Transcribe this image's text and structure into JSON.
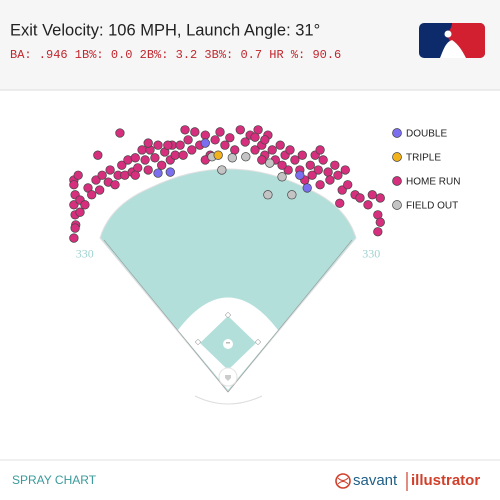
{
  "chart_data": {
    "type": "scatter",
    "title": "Exit Velocity: 106 MPH, Launch Angle: 31°",
    "subtitle": "BA: .946 1B%: 0.0 2B%: 3.2 3B%: 0.7 HR %: 90.6",
    "footer_label": "SPRAY CHART",
    "brand": [
      "savant",
      "illustrator"
    ],
    "distance_labels": [
      330,
      330
    ],
    "series": [
      {
        "name": "DOUBLE",
        "color": "#7b6ff0",
        "x": [
          -37,
          -114,
          -94,
          117,
          129
        ],
        "y": [
          445,
          388,
          390,
          384,
          360
        ]
      },
      {
        "name": "TRIPLE",
        "color": "#f2b21c",
        "x": [
          -16
        ],
        "y": [
          422
        ]
      },
      {
        "name": "HOME RUN",
        "color": "#d52f7d",
        "x": [
          -251,
          -249,
          -251,
          -249,
          -248,
          -251,
          -241,
          -241,
          -244,
          -228,
          -233,
          -222,
          -215,
          -209,
          -205,
          -195,
          -192,
          -184,
          -179,
          -173,
          -168,
          -163,
          -156,
          -151,
          -147,
          -140,
          -135,
          -130,
          -127,
          -119,
          -114,
          -108,
          -103,
          -94,
          -91,
          -86,
          -78,
          -73,
          -70,
          -65,
          -59,
          -54,
          -46,
          -37,
          -29,
          -21,
          -13,
          -5,
          3,
          11,
          20,
          28,
          36,
          44,
          49,
          55,
          60,
          65,
          72,
          77,
          85,
          93,
          98,
          101,
          109,
          117,
          121,
          125,
          134,
          142,
          147,
          150,
          155,
          163,
          166,
          174,
          179,
          186,
          191,
          195,
          182,
          207,
          215,
          228,
          235,
          244,
          248,
          244,
          248,
          -212,
          -176,
          -251,
          -249,
          44,
          60,
          -130,
          -98,
          -151,
          -37,
          55,
          88,
          137,
          150
        ],
        "y": [
          375,
          347,
          328,
          309,
          290,
          265,
          314,
          337,
          384,
          360,
          328,
          347,
          375,
          356,
          384,
          371,
          394,
          366,
          384,
          403,
          384,
          413,
          390,
          417,
          398,
          432,
          413,
          394,
          432,
          417,
          441,
          403,
          428,
          413,
          441,
          422,
          441,
          422,
          470,
          451,
          432,
          466,
          441,
          460,
          422,
          451,
          466,
          441,
          455,
          432,
          470,
          447,
          460,
          432,
          470,
          441,
          422,
          460,
          432,
          413,
          441,
          422,
          394,
          432,
          413,
          394,
          422,
          375,
          403,
          422,
          394,
          366,
          413,
          390,
          375,
          403,
          384,
          356,
          394,
          366,
          331,
          347,
          341,
          328,
          347,
          309,
          295,
          277,
          341,
          422,
          464,
          366,
          284,
          456,
          451,
          445,
          441,
          384,
          413,
          413,
          403,
          384,
          432
        ]
      },
      {
        "name": "FIELD OUT",
        "color": "#c4c4c4",
        "x": [
          -10,
          7,
          -26,
          65,
          104,
          88,
          68,
          29
        ],
        "y": [
          394,
          417,
          419,
          347,
          347,
          381,
          407,
          419
        ]
      }
    ]
  }
}
